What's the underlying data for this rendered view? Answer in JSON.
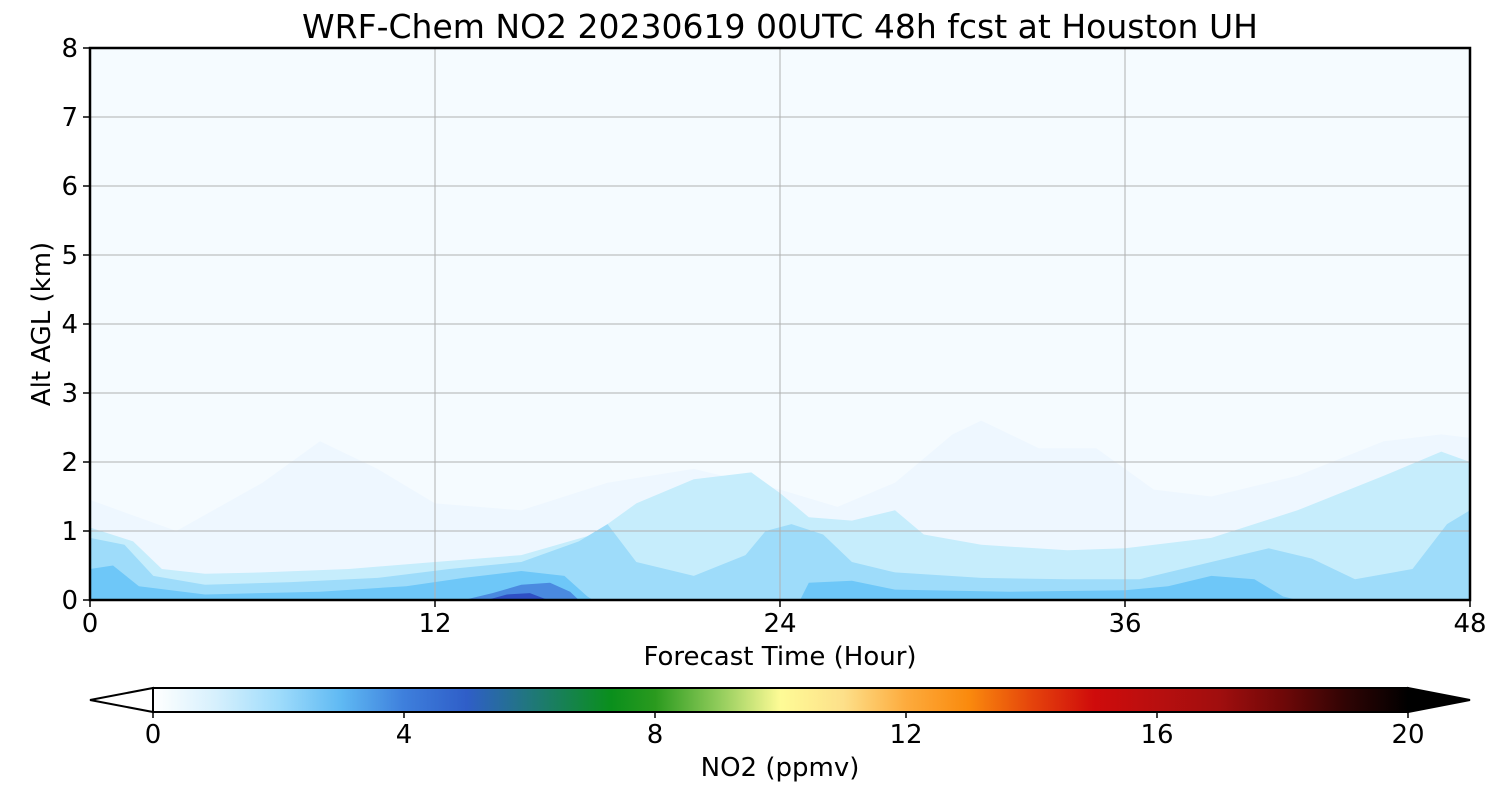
{
  "chart_data": {
    "type": "area",
    "title": "WRF-Chem NO2  20230619 00UTC 48h fcst at Houston UH",
    "xlabel": "Forecast Time (Hour)",
    "ylabel": "Alt AGL (km)",
    "xlim": [
      0,
      48
    ],
    "ylim": [
      0,
      8
    ],
    "x_ticks": [
      "0",
      "12",
      "24",
      "36",
      "48"
    ],
    "y_ticks": [
      "0",
      "1",
      "2",
      "3",
      "4",
      "5",
      "6",
      "7",
      "8"
    ],
    "grid": true,
    "field_unit": "ppmv",
    "contour_regions": [
      {
        "level": 0.2,
        "color": "#eef7ff",
        "points": [
          [
            0,
            1.45
          ],
          [
            3,
            1.0
          ],
          [
            6,
            1.7
          ],
          [
            8,
            2.3
          ],
          [
            10,
            1.9
          ],
          [
            12,
            1.4
          ],
          [
            15,
            1.3
          ],
          [
            18,
            1.7
          ],
          [
            21,
            1.9
          ],
          [
            24,
            1.6
          ],
          [
            26,
            1.35
          ],
          [
            28,
            1.7
          ],
          [
            30,
            2.4
          ],
          [
            31,
            2.6
          ],
          [
            33,
            2.2
          ],
          [
            35,
            2.2
          ],
          [
            37,
            1.6
          ],
          [
            39,
            1.5
          ],
          [
            42,
            1.8
          ],
          [
            45,
            2.3
          ],
          [
            47,
            2.4
          ],
          [
            48,
            2.35
          ],
          [
            48,
            0
          ],
          [
            0,
            0
          ]
        ]
      },
      {
        "level": 0.5,
        "color": "#c6edfc",
        "points": [
          [
            0,
            1.05
          ],
          [
            1.5,
            0.85
          ],
          [
            2.5,
            0.45
          ],
          [
            4,
            0.38
          ],
          [
            6,
            0.4
          ],
          [
            9,
            0.45
          ],
          [
            12,
            0.55
          ],
          [
            15,
            0.65
          ],
          [
            17.5,
            0.95
          ],
          [
            19,
            1.4
          ],
          [
            21,
            1.75
          ],
          [
            23,
            1.85
          ],
          [
            24,
            1.55
          ],
          [
            25,
            1.2
          ],
          [
            26.5,
            1.15
          ],
          [
            28,
            1.3
          ],
          [
            29,
            0.95
          ],
          [
            31,
            0.8
          ],
          [
            34,
            0.72
          ],
          [
            36,
            0.75
          ],
          [
            39,
            0.9
          ],
          [
            42,
            1.3
          ],
          [
            45,
            1.8
          ],
          [
            47,
            2.15
          ],
          [
            48,
            2.0
          ],
          [
            48,
            0
          ],
          [
            0,
            0
          ]
        ]
      },
      {
        "level": 1.0,
        "color": "#9edcfa",
        "points": [
          [
            0,
            0.9
          ],
          [
            1.2,
            0.8
          ],
          [
            2.2,
            0.35
          ],
          [
            4,
            0.22
          ],
          [
            7,
            0.26
          ],
          [
            10,
            0.32
          ],
          [
            12.5,
            0.45
          ],
          [
            15,
            0.55
          ],
          [
            17,
            0.85
          ],
          [
            18,
            1.1
          ],
          [
            19,
            0.55
          ],
          [
            21,
            0.35
          ],
          [
            22.8,
            0.65
          ],
          [
            23.5,
            1.0
          ],
          [
            24.4,
            1.1
          ],
          [
            25.5,
            0.95
          ],
          [
            26.5,
            0.55
          ],
          [
            28,
            0.4
          ],
          [
            31,
            0.32
          ],
          [
            34,
            0.3
          ],
          [
            36.5,
            0.3
          ],
          [
            39,
            0.55
          ],
          [
            41,
            0.75
          ],
          [
            42.5,
            0.6
          ],
          [
            44,
            0.3
          ],
          [
            46,
            0.45
          ],
          [
            47.2,
            1.1
          ],
          [
            48,
            1.3
          ],
          [
            48,
            0
          ],
          [
            0,
            0
          ]
        ]
      },
      {
        "level": 2.0,
        "color": "#6ec7f8",
        "points": [
          [
            0,
            0.45
          ],
          [
            0.8,
            0.5
          ],
          [
            1.7,
            0.2
          ],
          [
            4,
            0.08
          ],
          [
            8,
            0.12
          ],
          [
            11,
            0.2
          ],
          [
            13,
            0.32
          ],
          [
            15,
            0.42
          ],
          [
            16.5,
            0.35
          ],
          [
            17.3,
            0.05
          ],
          [
            17.5,
            0
          ],
          [
            24.7,
            0
          ],
          [
            25,
            0.25
          ],
          [
            26.5,
            0.28
          ],
          [
            28,
            0.15
          ],
          [
            32,
            0.12
          ],
          [
            36,
            0.14
          ],
          [
            37.5,
            0.2
          ],
          [
            39,
            0.35
          ],
          [
            40.5,
            0.3
          ],
          [
            41.5,
            0.05
          ],
          [
            42,
            0
          ],
          [
            0,
            0
          ]
        ]
      },
      {
        "level": 3.0,
        "color": "#4a8ae0",
        "points": [
          [
            13,
            0
          ],
          [
            14,
            0.1
          ],
          [
            15,
            0.22
          ],
          [
            16,
            0.25
          ],
          [
            16.7,
            0.12
          ],
          [
            17,
            0
          ]
        ]
      },
      {
        "level": 4.0,
        "color": "#2f4fc4",
        "points": [
          [
            13.8,
            0
          ],
          [
            14.5,
            0.08
          ],
          [
            15.3,
            0.1
          ],
          [
            15.8,
            0.02
          ],
          [
            16,
            0
          ]
        ]
      }
    ],
    "colorbar": {
      "label": "NO2  (ppmv)",
      "ticks": [
        "0",
        "4",
        "8",
        "12",
        "16",
        "20"
      ],
      "range": [
        0,
        20
      ],
      "extend": "both",
      "stops": [
        {
          "v": 0,
          "c": "#ffffff"
        },
        {
          "v": 1,
          "c": "#d6f0fd"
        },
        {
          "v": 2,
          "c": "#9fdcfb"
        },
        {
          "v": 3,
          "c": "#5fb9f3"
        },
        {
          "v": 4,
          "c": "#3e7fdc"
        },
        {
          "v": 5,
          "c": "#2f5ec8"
        },
        {
          "v": 6,
          "c": "#20777c"
        },
        {
          "v": 7.3,
          "c": "#0a8f1c"
        },
        {
          "v": 8,
          "c": "#2a9a1e"
        },
        {
          "v": 9,
          "c": "#8fcb5a"
        },
        {
          "v": 10,
          "c": "#fefb96"
        },
        {
          "v": 11,
          "c": "#fde08a"
        },
        {
          "v": 12,
          "c": "#fdab3d"
        },
        {
          "v": 13,
          "c": "#fa8a0d"
        },
        {
          "v": 14,
          "c": "#e5440c"
        },
        {
          "v": 15,
          "c": "#cf0b0b"
        },
        {
          "v": 16,
          "c": "#b80f0f"
        },
        {
          "v": 17,
          "c": "#a00e0e"
        },
        {
          "v": 18,
          "c": "#6f0808"
        },
        {
          "v": 19,
          "c": "#300404"
        },
        {
          "v": 20,
          "c": "#000000"
        }
      ]
    },
    "background_color": "#f5fbff"
  }
}
